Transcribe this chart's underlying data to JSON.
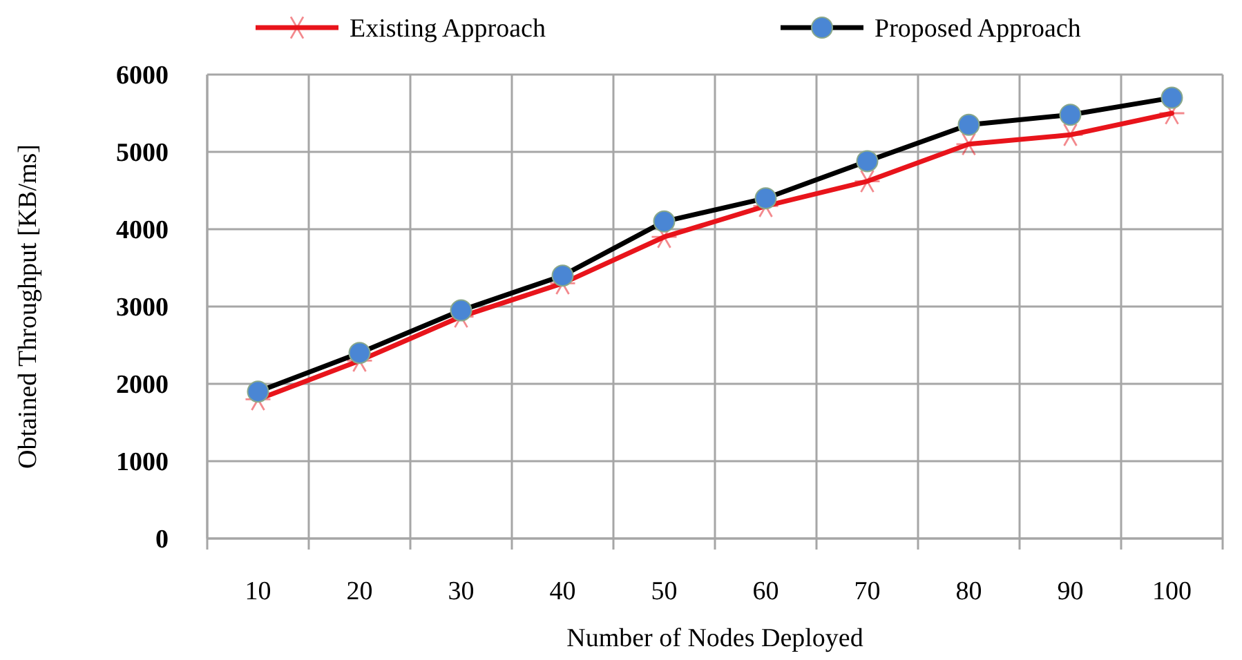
{
  "chart_data": {
    "type": "line",
    "xlabel": "Number of Nodes Deployed",
    "ylabel": "Obtained Throughput [KB/ms]",
    "categories": [
      "10",
      "20",
      "30",
      "40",
      "50",
      "60",
      "70",
      "80",
      "90",
      "100"
    ],
    "series": [
      {
        "name": "Existing Approach",
        "color": "#e8141b",
        "marker": "cross",
        "values": [
          1800,
          2300,
          2870,
          3300,
          3900,
          4300,
          4620,
          5100,
          5220,
          5500
        ]
      },
      {
        "name": "Proposed Approach",
        "color": "#000000",
        "marker": "circle",
        "values": [
          1900,
          2400,
          2950,
          3400,
          4100,
          4400,
          4880,
          5350,
          5480,
          5700
        ]
      }
    ],
    "ylim": [
      0,
      6000
    ],
    "yticks": [
      0,
      1000,
      2000,
      3000,
      4000,
      5000,
      6000
    ],
    "grid": true,
    "legend": "top"
  }
}
